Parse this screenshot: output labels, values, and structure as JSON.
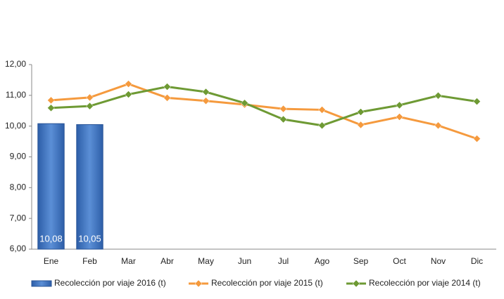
{
  "chart_data": {
    "type": "bar_line",
    "categories": [
      "Ene",
      "Feb",
      "Mar",
      "Abr",
      "May",
      "Jun",
      "Jul",
      "Ago",
      "Sep",
      "Oct",
      "Nov",
      "Dic"
    ],
    "series": [
      {
        "name": "Recolección por viaje 2016 (t)",
        "type": "bar",
        "color": "#3f73c1",
        "values": [
          10.08,
          10.05,
          null,
          null,
          null,
          null,
          null,
          null,
          null,
          null,
          null,
          null
        ],
        "value_labels": [
          "10,08",
          "10,05",
          null,
          null,
          null,
          null,
          null,
          null,
          null,
          null,
          null,
          null
        ]
      },
      {
        "name": "Recolección por viaje 2015 (t)",
        "type": "line",
        "color": "#f59a3e",
        "values": [
          10.84,
          10.93,
          11.37,
          10.92,
          10.82,
          10.7,
          10.56,
          10.53,
          10.04,
          10.3,
          10.02,
          9.59
        ]
      },
      {
        "name": "Recolección por viaje 2014 (t)",
        "type": "line",
        "color": "#6e9a34",
        "values": [
          10.59,
          10.65,
          11.03,
          11.28,
          11.11,
          10.75,
          10.22,
          10.02,
          10.46,
          10.68,
          10.99,
          10.8
        ]
      }
    ],
    "ylim": [
      6,
      12
    ],
    "yticks": [
      {
        "value": 6,
        "label": "6,00"
      },
      {
        "value": 7,
        "label": "7,00"
      },
      {
        "value": 8,
        "label": "8,00"
      },
      {
        "value": 9,
        "label": "9,00"
      },
      {
        "value": 10,
        "label": "10,00"
      },
      {
        "value": 11,
        "label": "11,00"
      },
      {
        "value": 12,
        "label": "12,00"
      }
    ],
    "grid": false,
    "legend": "bottom"
  }
}
